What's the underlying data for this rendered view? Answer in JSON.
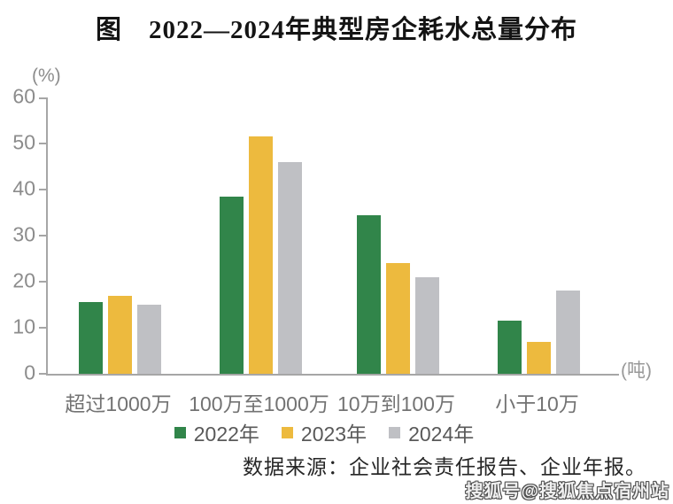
{
  "page": {
    "title": "图　2022—2024年典型房企耗水总量分布",
    "source_note": "数据来源：企业社会责任报告、企业年报。",
    "watermark": "搜狐号@搜狐焦点宿州站"
  },
  "chart_data": {
    "type": "bar",
    "title": "图　2022—2024年典型房企耗水总量分布",
    "categories": [
      "超过1000万",
      "100万至1000万",
      "10万到100万",
      "小于10万"
    ],
    "series": [
      {
        "name": "2022年",
        "color": "#31854A",
        "values": [
          15.5,
          38.5,
          34.5,
          11.5
        ]
      },
      {
        "name": "2023年",
        "color": "#EDBA3E",
        "values": [
          17,
          51.5,
          24,
          7
        ]
      },
      {
        "name": "2024年",
        "color": "#BFC0C4",
        "values": [
          15,
          46,
          21,
          18
        ]
      }
    ],
    "ylabel": "(%)",
    "xlabel": "(吨)",
    "ylim": [
      0,
      60
    ],
    "yticks": [
      0,
      10,
      20,
      30,
      40,
      50,
      60
    ],
    "grid": false,
    "legend_position": "bottom",
    "axis_color": "#A6A6A6",
    "tick_label_color": "#8C8C8C"
  }
}
